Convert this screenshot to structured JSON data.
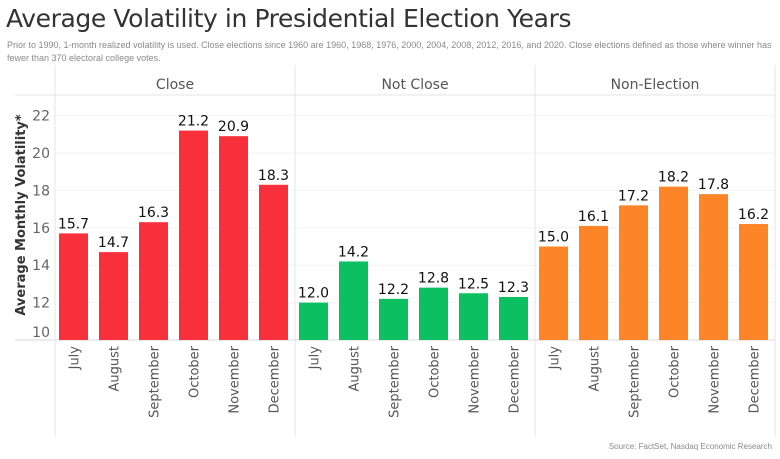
{
  "header": {
    "title": "Average Volatility in Presidential Election Years",
    "subtitle": "Prior to 1990, 1-month realized volatility is used. Close elections since 1960 are 1960, 1968, 1976, 2000, 2004, 2008, 2012, 2016, and 2020. Close elections defined as those where winner has fewer than 370 electoral college votes.",
    "source": "Source: FactSet, Nasdaq Economic Research"
  },
  "chart_data": {
    "type": "bar",
    "title": "Average Volatility in Presidential Election Years",
    "xlabel": "",
    "ylabel": "Average Monthly Volatility*",
    "ylim": [
      10,
      23
    ],
    "yticks": [
      10,
      12,
      14,
      16,
      18,
      20,
      22
    ],
    "grid": true,
    "legend": "none",
    "categories": [
      "July",
      "August",
      "September",
      "October",
      "November",
      "December"
    ],
    "panels": [
      {
        "name": "Close",
        "color": "#f8303c",
        "values": [
          15.7,
          14.7,
          16.3,
          21.2,
          20.9,
          18.3
        ]
      },
      {
        "name": "Not Close",
        "color": "#0cc061",
        "values": [
          12.0,
          14.2,
          12.2,
          12.8,
          12.5,
          12.3
        ]
      },
      {
        "name": "Non-Election",
        "color": "#fd8427",
        "values": [
          15.0,
          16.1,
          17.2,
          18.2,
          17.8,
          16.2
        ]
      }
    ],
    "value_label_format": "0.0"
  }
}
